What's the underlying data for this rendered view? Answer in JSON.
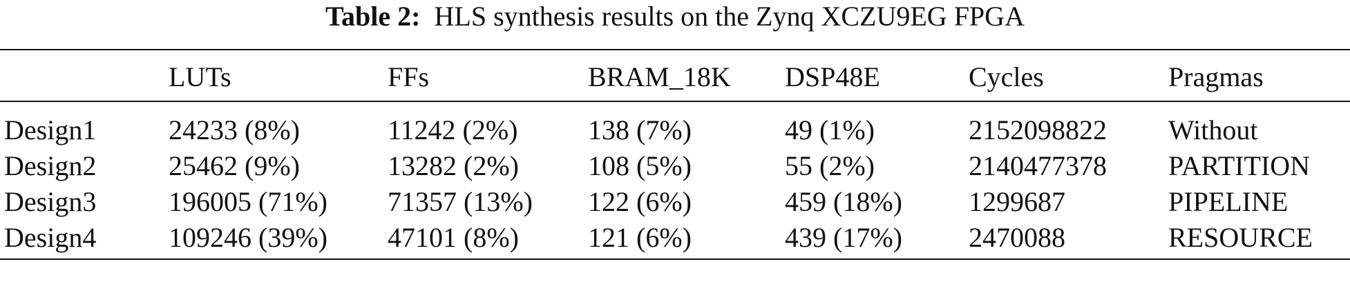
{
  "caption": {
    "label": "Table 2:",
    "text": "HLS synthesis results on the Zynq XCZU9EG FPGA"
  },
  "table": {
    "header": [
      "",
      "LUTs",
      "FFs",
      "BRAM_18K",
      "DSP48E",
      "Cycles",
      "Pragmas"
    ],
    "rows": [
      [
        "Design1",
        "24233 (8%)",
        "11242 (2%)",
        "138 (7%)",
        "49 (1%)",
        "2152098822",
        "Without"
      ],
      [
        "Design2",
        "25462 (9%)",
        "13282 (2%)",
        "108 (5%)",
        "55 (2%)",
        "2140477378",
        "PARTITION"
      ],
      [
        "Design3",
        "196005 (71%)",
        "71357 (13%)",
        "122 (6%)",
        "459 (18%)",
        "1299687",
        "PIPELINE"
      ],
      [
        "Design4",
        "109246 (39%)",
        "47101 (8%)",
        "121 (6%)",
        "439 (17%)",
        "2470088",
        "RESOURCE"
      ]
    ]
  }
}
